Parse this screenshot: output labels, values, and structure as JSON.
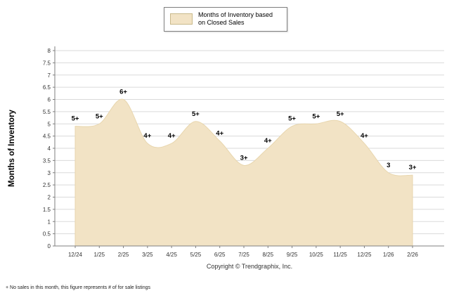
{
  "legend": {
    "line1": "Months of Inventory based",
    "line2": "on Closed Sales"
  },
  "footer": {
    "copyright": "Copyright © Trendgraphix, Inc.",
    "footnote": "+  No sales in this month, this figure represents # of for sale listings"
  },
  "chart_data": {
    "type": "area",
    "title": "Months of Inventory based on Closed Sales",
    "categories": [
      "12/24",
      "1/25",
      "2/25",
      "3/25",
      "4/25",
      "5/25",
      "6/25",
      "7/25",
      "8/25",
      "9/25",
      "10/25",
      "11/25",
      "12/25",
      "1/26",
      "2/26"
    ],
    "values": [
      4.9,
      5.0,
      6.0,
      4.2,
      4.2,
      5.1,
      4.3,
      3.3,
      4.0,
      4.9,
      5.0,
      5.1,
      4.2,
      3.0,
      2.9
    ],
    "point_labels": [
      "5+",
      "5+",
      "6+",
      "4+",
      "4+",
      "5+",
      "4+",
      "3+",
      "4+",
      "5+",
      "5+",
      "5+",
      "4+",
      "3",
      "3+"
    ],
    "xlabel": "",
    "ylabel": "Months of Inventory",
    "ylim": [
      0,
      8
    ],
    "ytick_step": 0.5,
    "grid": true,
    "legend_position": "top-center",
    "colors": {
      "area_fill": "#F2E3C5",
      "area_stroke": "#E8D6AE",
      "grid": "#DADADA",
      "axis": "#7f7f7f",
      "tick_text": "#333333",
      "label_text": "#000000"
    }
  }
}
